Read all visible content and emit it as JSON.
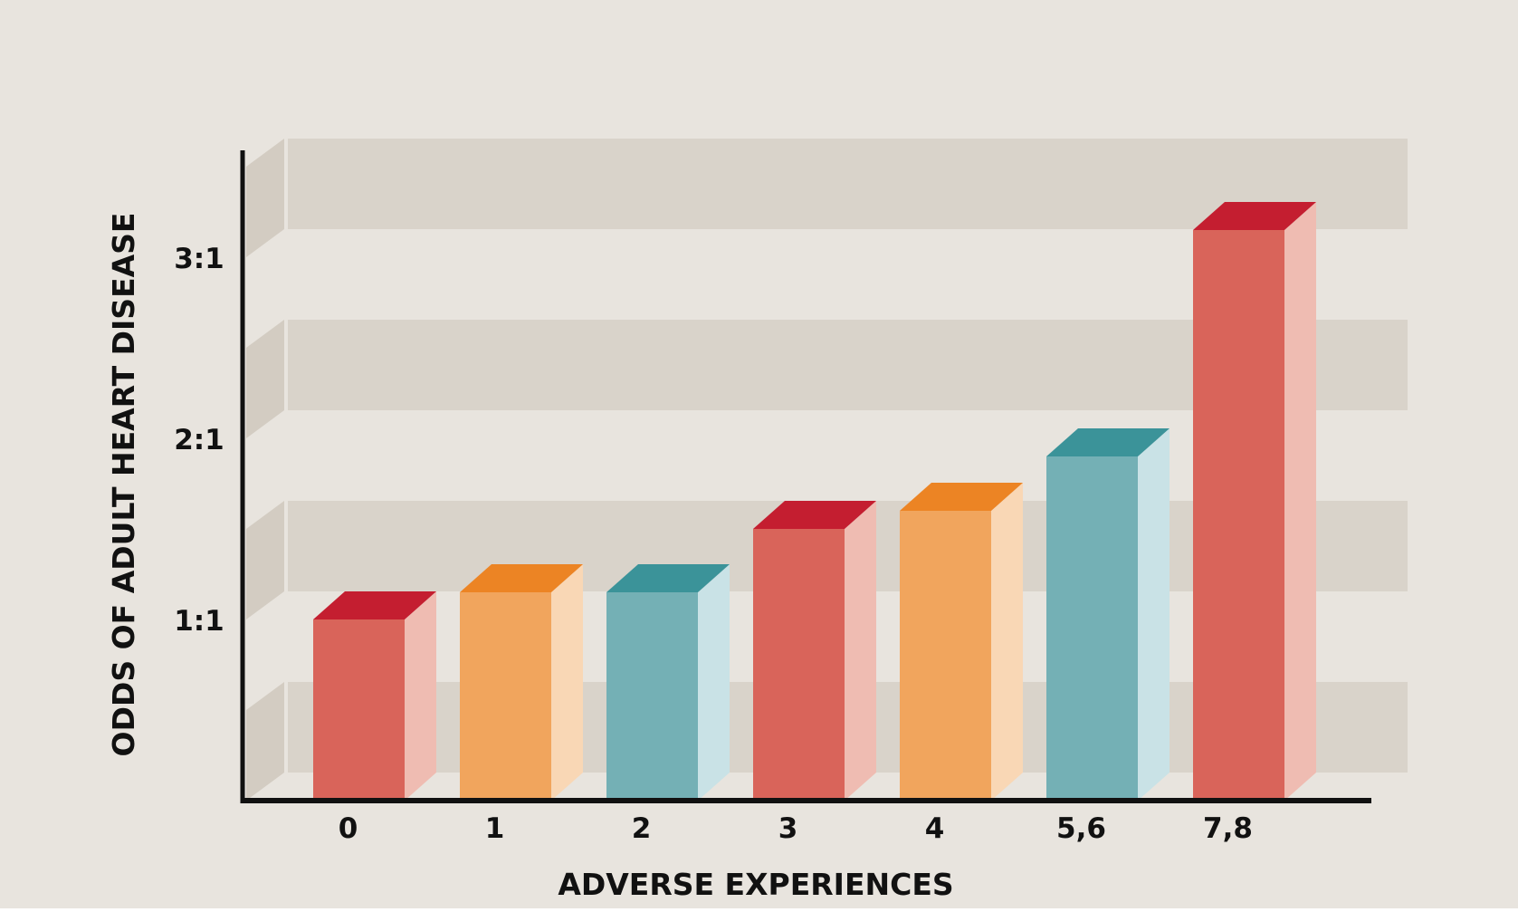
{
  "chart_data": {
    "type": "bar",
    "title": "",
    "xlabel": "ADVERSE EXPERIENCES",
    "ylabel": "ODDS OF ADULT HEART DISEASE",
    "categories": [
      "0",
      "1",
      "2",
      "3",
      "4",
      "5,6",
      "7,8"
    ],
    "values": [
      1.0,
      1.15,
      1.15,
      1.5,
      1.6,
      1.9,
      3.15
    ],
    "yticks": [
      1,
      2,
      3
    ],
    "ytick_labels": [
      "1:1",
      "2:1",
      "3:1"
    ],
    "ylim": [
      0,
      3.5
    ],
    "grid": "alternating horizontal bands",
    "legend": "none",
    "bar_colors": [
      "red",
      "orange",
      "teal",
      "red",
      "orange",
      "teal",
      "red"
    ]
  },
  "palette": {
    "background": "#e8e4de",
    "band": "#d9d3ca",
    "band_side": "#d3ccc2",
    "axis": "#111111",
    "red": {
      "front": "#d9645a",
      "top": "#c41e30",
      "side": "#efbcb2"
    },
    "orange": {
      "front": "#f1a55d",
      "top": "#ec8424",
      "side": "#f9d7b5"
    },
    "teal": {
      "front": "#74b0b5",
      "top": "#3b9399",
      "side": "#c9e2e6"
    }
  }
}
